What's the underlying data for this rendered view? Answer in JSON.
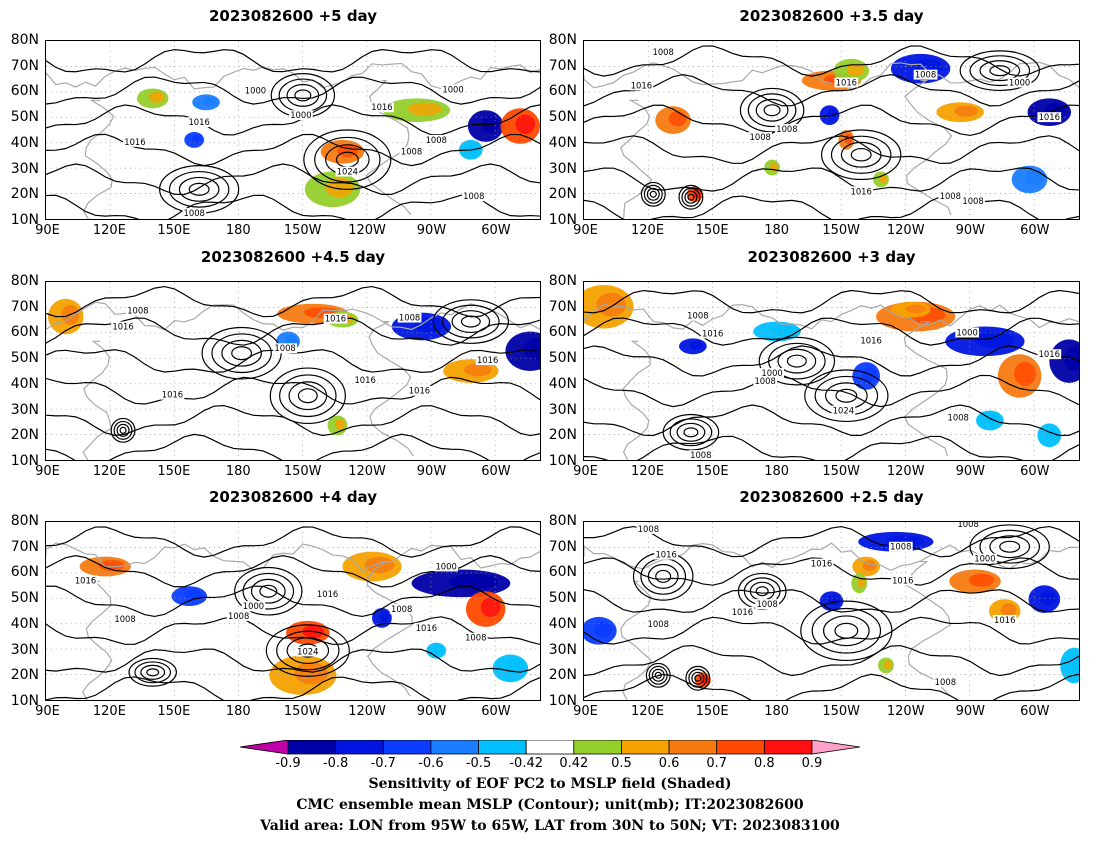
{
  "panels": [
    {
      "title": "2023082600  +5 day",
      "variant": 0
    },
    {
      "title": "2023082600  +3.5 day",
      "variant": 3
    },
    {
      "title": "2023082600  +4.5 day",
      "variant": 1
    },
    {
      "title": "2023082600  +3 day",
      "variant": 4
    },
    {
      "title": "2023082600  +4 day",
      "variant": 2
    },
    {
      "title": "2023082600  +2.5 day",
      "variant": 5
    }
  ],
  "lat_labels": [
    "80N",
    "70N",
    "60N",
    "50N",
    "40N",
    "30N",
    "20N",
    "10N"
  ],
  "lon_labels": [
    "90E",
    "120E",
    "150E",
    "180",
    "150W",
    "120W",
    "90W",
    "60W"
  ],
  "contour_labels": [
    "1000",
    "1008",
    "1016",
    "1024"
  ],
  "colorbar": {
    "levels": [
      "-0.9",
      "-0.8",
      "-0.7",
      "-0.6",
      "-0.5",
      "-0.42",
      "0.42",
      "0.5",
      "0.6",
      "0.7",
      "0.8",
      "0.9"
    ],
    "colors": [
      "#0000a8",
      "#0016e0",
      "#0b3cff",
      "#1a7dff",
      "#00c0ff",
      "#ffffff",
      "#95cf2b",
      "#f6a200",
      "#f77a10",
      "#ff4a00",
      "#ff1010"
    ],
    "under_color": "#c000a8",
    "over_color": "#ffa0c8"
  },
  "captions": [
    "Sensitivity of EOF PC2 to MSLP field (Shaded)",
    "CMC ensemble mean MSLP (Contour); unit(mb); IT:2023082600",
    "Valid area: LON from 95W to 65W, LAT from 30N to 50N; VT: 2023083100"
  ],
  "colors": {
    "contour": "#000000",
    "coast": "#a8a8a8",
    "grid": "#9a9a9a"
  }
}
